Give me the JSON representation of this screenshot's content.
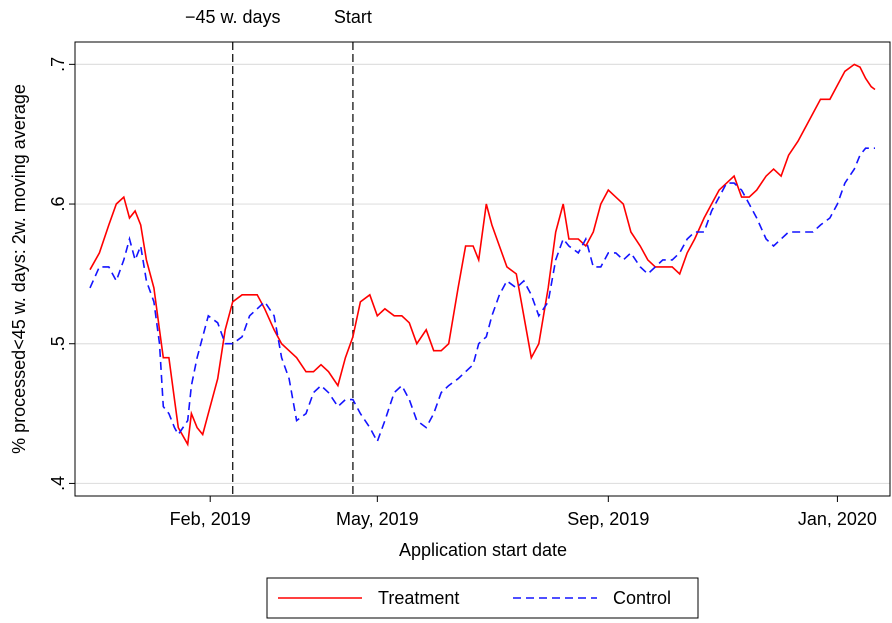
{
  "chart_data": {
    "type": "line",
    "xlabel": "Application start date",
    "ylabel": "% processed<45 w. days: 2w. moving average",
    "x": [
      21517,
      21522,
      21527,
      21531,
      21535,
      21538,
      21541,
      21544,
      21547,
      21551,
      21554,
      21556,
      21559,
      21562,
      21564,
      21569,
      21571,
      21574,
      21577,
      21580,
      21585,
      21589,
      21593,
      21598,
      21602,
      21606,
      21610,
      21615,
      21619,
      21623,
      21627,
      21632,
      21636,
      21640,
      21644,
      21649,
      21653,
      21657,
      21661,
      21666,
      21670,
      21674,
      21679,
      21683,
      21687,
      21691,
      21696,
      21700,
      21704,
      21708,
      21713,
      21717,
      21721,
      21724,
      21728,
      21731,
      21735,
      21739,
      21744,
      21748,
      21752,
      21756,
      21761,
      21765,
      21769,
      21772,
      21777,
      21781,
      21785,
      21789,
      21793,
      21797,
      21801,
      21805,
      21810,
      21814,
      21818,
      21822,
      21827,
      21831,
      21835,
      21839,
      21844,
      21848,
      21852,
      21856,
      21860,
      21864,
      21868,
      21872,
      21877,
      21881,
      21885,
      21889,
      21894,
      21898,
      21902,
      21906,
      21911,
      21915,
      21919,
      21924,
      21927,
      21930,
      21933,
      21935
    ],
    "series": [
      {
        "name": "Treatment",
        "color": "#ff0000",
        "style": "solid",
        "values": [
          0.553,
          0.565,
          0.585,
          0.6,
          0.605,
          0.59,
          0.595,
          0.585,
          0.56,
          0.54,
          0.51,
          0.49,
          0.49,
          0.46,
          0.44,
          0.428,
          0.45,
          0.44,
          0.435,
          0.45,
          0.475,
          0.51,
          0.53,
          0.535,
          0.535,
          0.535,
          0.525,
          0.51,
          0.5,
          0.495,
          0.49,
          0.48,
          0.48,
          0.485,
          0.48,
          0.47,
          0.49,
          0.505,
          0.53,
          0.535,
          0.52,
          0.525,
          0.52,
          0.52,
          0.515,
          0.5,
          0.51,
          0.495,
          0.495,
          0.5,
          0.54,
          0.57,
          0.57,
          0.56,
          0.6,
          0.585,
          0.57,
          0.555,
          0.55,
          0.52,
          0.49,
          0.5,
          0.54,
          0.58,
          0.6,
          0.575,
          0.575,
          0.57,
          0.58,
          0.6,
          0.61,
          0.605,
          0.6,
          0.58,
          0.57,
          0.56,
          0.555,
          0.555,
          0.555,
          0.55,
          0.565,
          0.575,
          0.59,
          0.6,
          0.61,
          0.615,
          0.62,
          0.605,
          0.605,
          0.61,
          0.62,
          0.625,
          0.62,
          0.635,
          0.645,
          0.655,
          0.665,
          0.675,
          0.675,
          0.685,
          0.695,
          0.7,
          0.698,
          0.69,
          0.684,
          0.682
        ]
      },
      {
        "name": "Control",
        "color": "#1414ff",
        "style": "dash",
        "values": [
          0.54,
          0.555,
          0.555,
          0.545,
          0.56,
          0.575,
          0.56,
          0.57,
          0.545,
          0.53,
          0.5,
          0.455,
          0.45,
          0.44,
          0.435,
          0.445,
          0.47,
          0.49,
          0.505,
          0.52,
          0.515,
          0.5,
          0.5,
          0.505,
          0.52,
          0.525,
          0.53,
          0.52,
          0.49,
          0.475,
          0.445,
          0.45,
          0.465,
          0.47,
          0.465,
          0.455,
          0.46,
          0.46,
          0.45,
          0.44,
          0.43,
          0.445,
          0.465,
          0.47,
          0.46,
          0.445,
          0.44,
          0.45,
          0.465,
          0.47,
          0.475,
          0.48,
          0.485,
          0.5,
          0.505,
          0.52,
          0.535,
          0.545,
          0.54,
          0.545,
          0.535,
          0.52,
          0.53,
          0.56,
          0.575,
          0.57,
          0.565,
          0.575,
          0.555,
          0.555,
          0.565,
          0.565,
          0.56,
          0.565,
          0.555,
          0.55,
          0.555,
          0.56,
          0.56,
          0.565,
          0.575,
          0.58,
          0.58,
          0.595,
          0.605,
          0.615,
          0.615,
          0.61,
          0.6,
          0.59,
          0.575,
          0.57,
          0.575,
          0.58,
          0.58,
          0.58,
          0.58,
          0.585,
          0.59,
          0.6,
          0.615,
          0.625,
          0.635,
          0.64,
          0.64,
          0.64
        ]
      }
    ],
    "xlim": [
      21509,
      21943
    ],
    "xticks": [
      {
        "value": 21581,
        "label": "Feb, 2019"
      },
      {
        "value": 21670,
        "label": "May, 2019"
      },
      {
        "value": 21793,
        "label": "Sep, 2019"
      },
      {
        "value": 21915,
        "label": "Jan, 2020"
      }
    ],
    "ylim": [
      0.391,
      0.716
    ],
    "yticks": [
      {
        "value": 0.4,
        "label": ".4"
      },
      {
        "value": 0.5,
        "label": ".5"
      },
      {
        "value": 0.6,
        "label": ".6"
      },
      {
        "value": 0.7,
        "label": ".7"
      }
    ],
    "grid": true,
    "legend": "bottom",
    "annotations": [
      {
        "x": 21593,
        "label": "−45 w. days"
      },
      {
        "x": 21657,
        "label": "Start"
      }
    ]
  }
}
